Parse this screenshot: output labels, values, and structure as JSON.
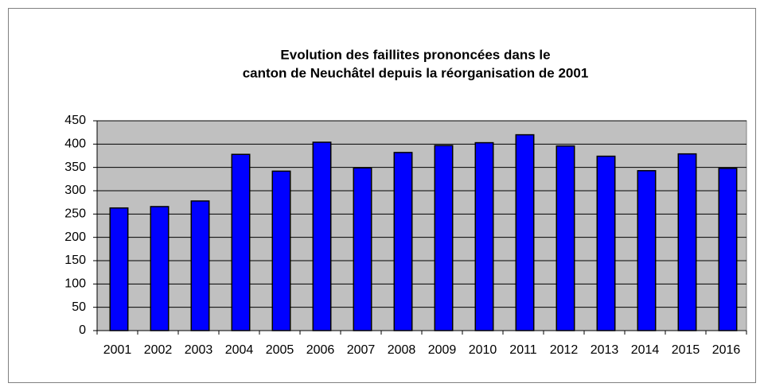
{
  "chart_data": {
    "type": "bar",
    "title": [
      "Evolution des faillites prononcées dans le",
      "canton de Neuchâtel depuis la réorganisation de 2001"
    ],
    "categories": [
      "2001",
      "2002",
      "2003",
      "2004",
      "2005",
      "2006",
      "2007",
      "2008",
      "2009",
      "2010",
      "2011",
      "2012",
      "2013",
      "2014",
      "2015",
      "2016"
    ],
    "values": [
      263,
      266,
      278,
      378,
      342,
      404,
      349,
      382,
      397,
      403,
      420,
      396,
      374,
      343,
      379,
      348
    ],
    "color": "#0000ff",
    "ylim": [
      0,
      450
    ],
    "yticks": [
      0,
      50,
      100,
      150,
      200,
      250,
      300,
      350,
      400,
      450
    ],
    "grid": true
  }
}
